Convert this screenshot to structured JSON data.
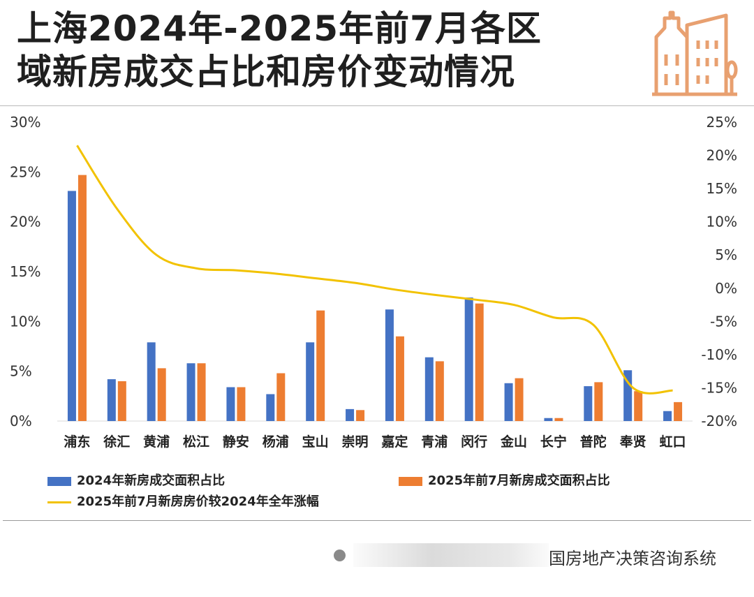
{
  "title_lines": [
    "上海2024年-2025年前7月各区",
    "域新房成交占比和房价变动情况"
  ],
  "footer_text": "国房地产决策咨询系统",
  "icons": {
    "header": "building-icon",
    "footer": "dot-icon"
  },
  "colors": {
    "series_2024": "#4472C4",
    "series_2025": "#ED7D31",
    "price_line": "#F2C200",
    "icon": "#E8A070"
  },
  "legend": {
    "bar_2024": "2024年新房成交面积占比",
    "bar_2025": "2025年前7月新房成交面积占比",
    "line": "2025年前7月新房房价较2024年全年涨幅"
  },
  "chart_data": {
    "type": "bar",
    "categories": [
      "浦东",
      "徐汇",
      "黄浦",
      "松江",
      "静安",
      "杨浦",
      "宝山",
      "崇明",
      "嘉定",
      "青浦",
      "闵行",
      "金山",
      "长宁",
      "普陀",
      "奉贤",
      "虹口"
    ],
    "series": [
      {
        "name": "2024年新房成交面积占比",
        "type": "bar",
        "axis": "left",
        "values": [
          23.1,
          4.2,
          7.9,
          5.8,
          3.4,
          2.7,
          7.9,
          1.2,
          11.2,
          6.4,
          12.4,
          3.8,
          0.3,
          3.5,
          5.1,
          1.0
        ]
      },
      {
        "name": "2025年前7月新房成交面积占比",
        "type": "bar",
        "axis": "left",
        "values": [
          24.7,
          4.0,
          5.3,
          5.8,
          3.4,
          4.8,
          11.1,
          1.1,
          8.5,
          6.0,
          11.8,
          4.3,
          0.3,
          3.9,
          3.0,
          1.9
        ]
      },
      {
        "name": "2025年前7月新房房价较2024年全年涨幅",
        "type": "line",
        "axis": "right",
        "values": [
          21.5,
          12.0,
          5.0,
          3.0,
          2.7,
          2.2,
          1.5,
          0.8,
          -0.2,
          -1.0,
          -1.7,
          -2.5,
          -4.4,
          -5.5,
          -15.0,
          -15.4
        ]
      }
    ],
    "left_axis": {
      "ylim": [
        0,
        30
      ],
      "ticks": [
        0,
        5,
        10,
        15,
        20,
        25,
        30
      ],
      "tick_labels": [
        "0%",
        "5%",
        "10%",
        "15%",
        "20%",
        "25%",
        "30%"
      ]
    },
    "right_axis": {
      "ylim": [
        -20,
        25
      ],
      "ticks": [
        -20,
        -15,
        -10,
        -5,
        0,
        5,
        10,
        15,
        20,
        25
      ],
      "tick_labels": [
        "-20%",
        "-15%",
        "-10%",
        "-5%",
        "0%",
        "5%",
        "10%",
        "15%",
        "20%",
        "25%"
      ]
    },
    "grid": false,
    "legend_position": "bottom"
  }
}
